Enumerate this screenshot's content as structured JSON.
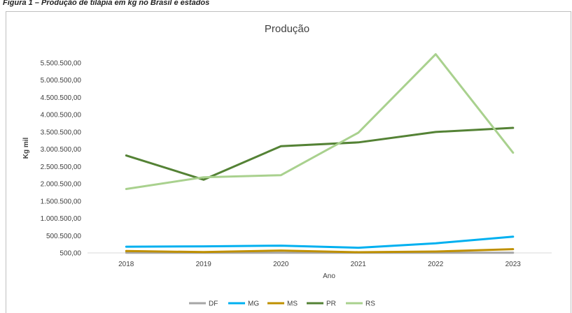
{
  "caption_fragment": "Figura 1 – Produção de tilápia em kg no Brasil e estados",
  "chart_data": {
    "type": "line",
    "title": "Produção",
    "xlabel": "Ano",
    "ylabel": "Kg mil",
    "x": [
      "2018",
      "2019",
      "2020",
      "2021",
      "2022",
      "2023"
    ],
    "ylim": [
      500,
      5500000
    ],
    "yticks": [
      "5.500.500,00",
      "5.000.500,00",
      "4.500.500,00",
      "4.000.500,00",
      "3.500.500,00",
      "3.000.500,00",
      "2.500.500,00",
      "2.000.500,00",
      "1.500.500,00",
      "1.000.500,00",
      "500.500,00",
      "500,00"
    ],
    "ytick_values": [
      5500500,
      5000500,
      4500500,
      4000500,
      3500500,
      3000500,
      2500500,
      2000500,
      1500500,
      1000500,
      500500,
      500
    ],
    "grid": false,
    "legend_position": "bottom",
    "series": [
      {
        "name": "DF",
        "color": "#a6a6a6",
        "values": [
          5000,
          5000,
          5000,
          5000,
          5000,
          5000
        ]
      },
      {
        "name": "MG",
        "color": "#00b0f0",
        "values": [
          180000,
          190000,
          210000,
          150000,
          280000,
          470000
        ]
      },
      {
        "name": "MS",
        "color": "#bf9000",
        "values": [
          55000,
          25000,
          70000,
          20000,
          40000,
          110000
        ]
      },
      {
        "name": "PR",
        "color": "#548235",
        "values": [
          2820000,
          2120000,
          3090000,
          3200000,
          3500000,
          3620000
        ]
      },
      {
        "name": "RS",
        "color": "#a9d18e",
        "values": [
          1850000,
          2190000,
          2250000,
          3480000,
          5750000,
          2900000
        ]
      }
    ]
  }
}
